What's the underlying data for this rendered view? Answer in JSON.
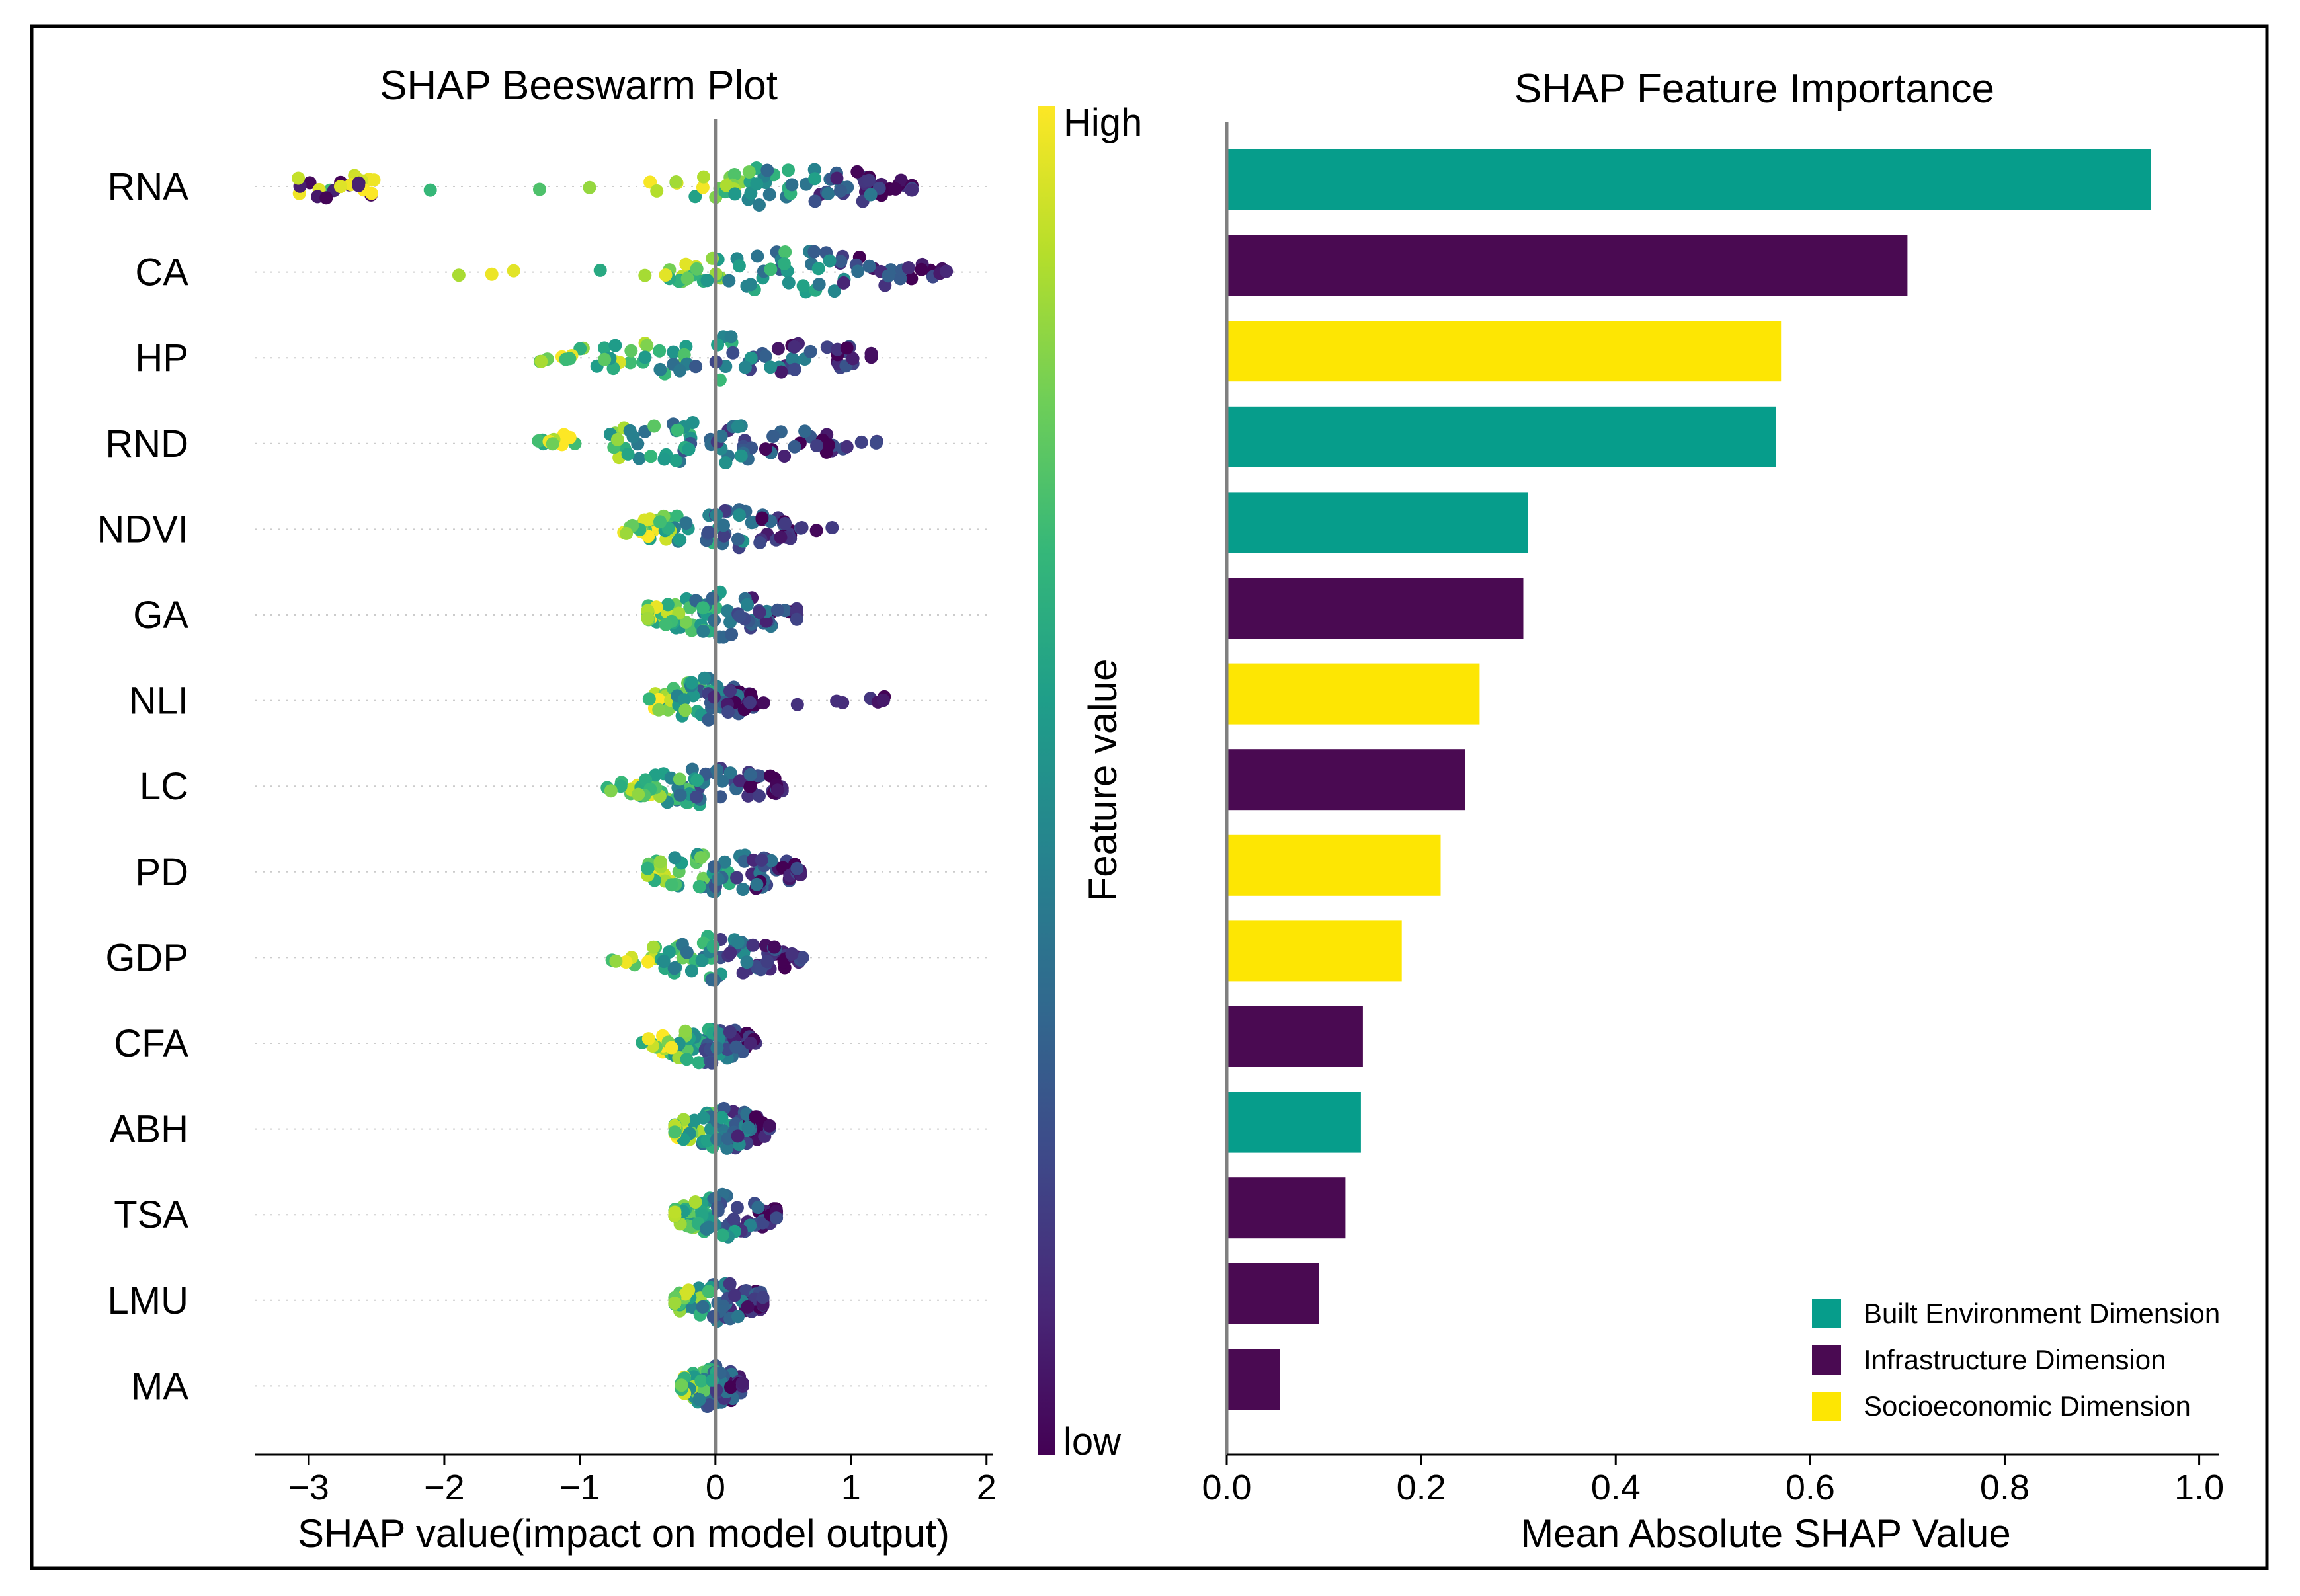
{
  "colors": {
    "built": "#069d8b",
    "infra": "#4a0a52",
    "socio": "#fde603",
    "axis": "#808080",
    "frame": "#000000"
  },
  "chart_data": [
    {
      "type": "scatter",
      "subtype": "beeswarm",
      "title": "SHAP Beeswarm Plot",
      "xlabel": "SHAP value(impact on model output)",
      "xlim": [
        -3.4,
        2.05
      ],
      "xticks": [
        -3,
        -2,
        -1,
        0,
        1,
        2
      ],
      "xtick_labels": [
        "−3",
        "−2",
        "−1",
        "0",
        "1",
        "2"
      ],
      "features": [
        {
          "name": "RNA",
          "min": -3.2,
          "max": 1.45,
          "core": [
            -0.3,
            1.45
          ],
          "lowcluster": [
            -3.1,
            -2.4
          ]
        },
        {
          "name": "CA",
          "min": -2.1,
          "max": 1.85,
          "core": [
            -0.35,
            1.6
          ]
        },
        {
          "name": "HP",
          "min": -1.3,
          "max": 1.15,
          "core": [
            -1.0,
            1.15
          ]
        },
        {
          "name": "RND",
          "min": -1.35,
          "max": 1.2,
          "core": [
            -1.15,
            0.95
          ]
        },
        {
          "name": "NDVI",
          "min": -0.7,
          "max": 0.95,
          "core": [
            -0.55,
            0.6
          ]
        },
        {
          "name": "GA",
          "min": -0.5,
          "max": 0.6,
          "core": [
            -0.5,
            0.6
          ]
        },
        {
          "name": "NLI",
          "min": -0.5,
          "max": 1.4,
          "core": [
            -0.45,
            0.3
          ]
        },
        {
          "name": "LC",
          "min": -0.85,
          "max": 0.5,
          "core": [
            -0.65,
            0.45
          ]
        },
        {
          "name": "PD",
          "min": -0.5,
          "max": 0.65,
          "core": [
            -0.5,
            0.6
          ]
        },
        {
          "name": "GDP",
          "min": -0.8,
          "max": 0.65,
          "core": [
            -0.6,
            0.55
          ]
        },
        {
          "name": "CFA",
          "min": -0.55,
          "max": 0.3,
          "core": [
            -0.4,
            0.25
          ]
        },
        {
          "name": "ABH",
          "min": -0.3,
          "max": 0.4,
          "core": [
            -0.3,
            0.4
          ]
        },
        {
          "name": "TSA",
          "min": -0.3,
          "max": 0.45,
          "core": [
            -0.3,
            0.45
          ]
        },
        {
          "name": "LMU",
          "min": -0.3,
          "max": 0.35,
          "core": [
            -0.3,
            0.35
          ]
        },
        {
          "name": "MA",
          "min": -0.25,
          "max": 0.2,
          "core": [
            -0.25,
            0.2
          ]
        }
      ],
      "colorbar": {
        "label": "Feature value",
        "high": "High",
        "low": "low"
      }
    },
    {
      "type": "bar",
      "orientation": "horizontal",
      "title": "SHAP Feature Importance",
      "xlabel": "Mean Absolute SHAP Value",
      "xlim": [
        0,
        1.02
      ],
      "xticks": [
        0.0,
        0.2,
        0.4,
        0.6,
        0.8,
        1.0
      ],
      "xtick_labels": [
        "0.0",
        "0.2",
        "0.4",
        "0.6",
        "0.8",
        "1.0"
      ],
      "categories": [
        "RNA",
        "CA",
        "HP",
        "RND",
        "NDVI",
        "GA",
        "NLI",
        "LC",
        "PD",
        "GDP",
        "CFA",
        "ABH",
        "TSA",
        "LMU",
        "MA"
      ],
      "values": [
        0.95,
        0.7,
        0.57,
        0.565,
        0.31,
        0.305,
        0.26,
        0.245,
        0.22,
        0.18,
        0.14,
        0.138,
        0.122,
        0.095,
        0.055
      ],
      "groups": [
        "built",
        "infra",
        "socio",
        "built",
        "built",
        "infra",
        "socio",
        "infra",
        "socio",
        "socio",
        "infra",
        "built",
        "infra",
        "infra",
        "infra"
      ],
      "legend": [
        {
          "key": "built",
          "label": "Built Environment Dimension"
        },
        {
          "key": "infra",
          "label": "Infrastructure Dimension"
        },
        {
          "key": "socio",
          "label": "Socioeconomic Dimension"
        }
      ],
      "legend_position": "bottom-right"
    }
  ]
}
